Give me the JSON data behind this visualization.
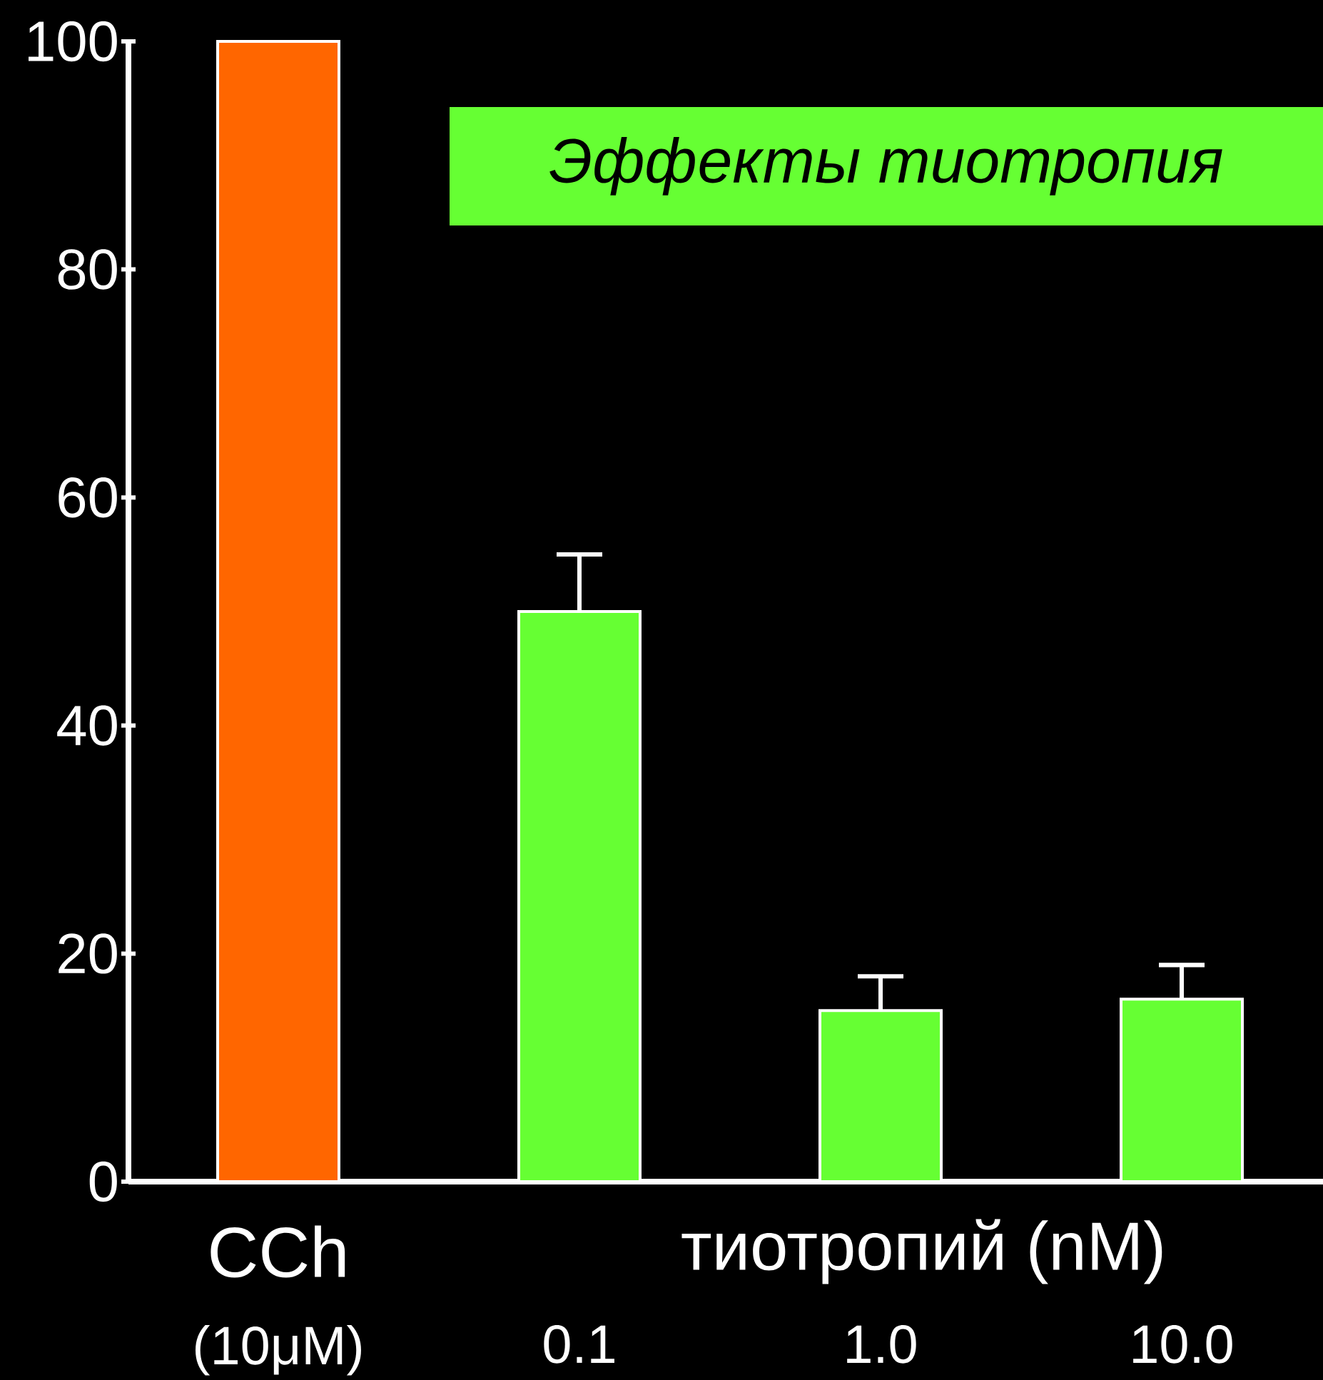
{
  "chart_data": {
    "type": "bar",
    "title": "Эффекты тиотропия",
    "categories": [
      "(10μM)",
      "0.1",
      "1.0",
      "10.0"
    ],
    "values": [
      100,
      50,
      15,
      16
    ],
    "errors": [
      null,
      5,
      3,
      3
    ],
    "colors": [
      "#ff6600",
      "#66ff33",
      "#66ff33",
      "#66ff33"
    ],
    "ylim": [
      0,
      100
    ],
    "yticks": [
      0,
      20,
      40,
      60,
      80,
      100
    ],
    "annotations": [
      "CCh",
      "тиотропий (nM)"
    ]
  }
}
